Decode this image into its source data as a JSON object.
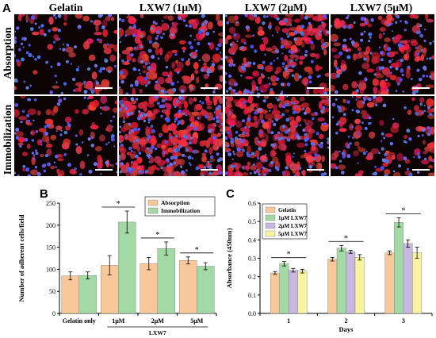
{
  "panel_A": {
    "letter": "A",
    "columns": [
      "Gelatin",
      "LXW7 (1μM)",
      "LXW7 (2μM)",
      "LXW7 (5μM)"
    ],
    "rows": [
      "Absorption",
      "Immobilization"
    ]
  },
  "chart_data": [
    {
      "panel": "B",
      "type": "bar",
      "ylabel": "Number of adherent cells/field",
      "xlabel": "",
      "group_label": "LXW7",
      "categories": [
        "Gelatin only",
        "1μM",
        "2μM",
        "5μM"
      ],
      "ylim": [
        0,
        250
      ],
      "yticks": [
        0,
        50,
        100,
        150,
        200,
        250
      ],
      "legend_position": "top-right",
      "series": [
        {
          "name": "Absorption",
          "color": "#f9c89a",
          "values": [
            85,
            109,
            113,
            120
          ],
          "errors": [
            9,
            22,
            14,
            8
          ]
        },
        {
          "name": "Immobilization",
          "color": "#a3d9a5",
          "values": [
            86,
            207,
            147,
            107
          ],
          "errors": [
            8,
            25,
            15,
            8
          ]
        }
      ],
      "significance": [
        "",
        "*",
        "*",
        "*"
      ]
    },
    {
      "panel": "C",
      "type": "bar",
      "ylabel": "Absorbance (450nm)",
      "xlabel": "Days",
      "categories": [
        "1",
        "2",
        "3"
      ],
      "ylim": [
        0.0,
        0.6
      ],
      "yticks": [
        "0.0",
        "0.1",
        "0.2",
        "0.3",
        "0.4",
        "0.5",
        "0.6"
      ],
      "legend_position": "top-left",
      "series": [
        {
          "name": "Gelatin",
          "color": "#f9c89a",
          "values": [
            0.22,
            0.295,
            0.33
          ],
          "errors": [
            0.008,
            0.01,
            0.01
          ]
        },
        {
          "name": "1μM LXW7",
          "color": "#a3d9a5",
          "values": [
            0.27,
            0.355,
            0.495
          ],
          "errors": [
            0.012,
            0.015,
            0.025
          ]
        },
        {
          "name": "2μM LXW7",
          "color": "#c8b8e0",
          "values": [
            0.235,
            0.335,
            0.38
          ],
          "errors": [
            0.01,
            0.008,
            0.02
          ]
        },
        {
          "name": "5μM LXW7",
          "color": "#f8f3a0",
          "values": [
            0.23,
            0.305,
            0.33
          ],
          "errors": [
            0.01,
            0.015,
            0.03
          ]
        }
      ],
      "significance": [
        "*",
        "*",
        "*"
      ]
    }
  ]
}
